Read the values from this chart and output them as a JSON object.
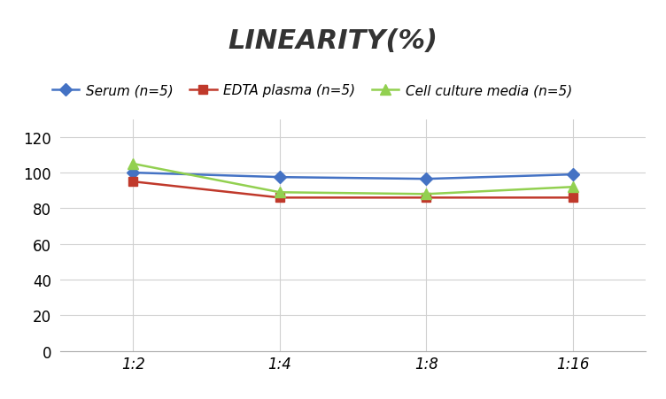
{
  "title": "LINEARITY(%)",
  "x_labels": [
    "1:2",
    "1:4",
    "1:8",
    "1:16"
  ],
  "x_positions": [
    0,
    1,
    2,
    3
  ],
  "series": [
    {
      "name": "Serum (n=5)",
      "values": [
        100,
        97.5,
        96.5,
        99
      ],
      "color": "#4472C4",
      "marker": "D",
      "marker_size": 7,
      "linewidth": 1.8
    },
    {
      "name": "EDTA plasma (n=5)",
      "values": [
        95,
        86,
        86,
        86
      ],
      "color": "#C0392B",
      "marker": "s",
      "marker_size": 7,
      "linewidth": 1.8
    },
    {
      "name": "Cell culture media (n=5)",
      "values": [
        105,
        89,
        88,
        92
      ],
      "color": "#92D050",
      "marker": "^",
      "marker_size": 8,
      "linewidth": 1.8
    }
  ],
  "ylim": [
    0,
    130
  ],
  "yticks": [
    0,
    20,
    40,
    60,
    80,
    100,
    120
  ],
  "grid_color": "#d0d0d0",
  "background_color": "#ffffff",
  "title_fontsize": 22,
  "legend_fontsize": 11,
  "tick_fontsize": 12
}
